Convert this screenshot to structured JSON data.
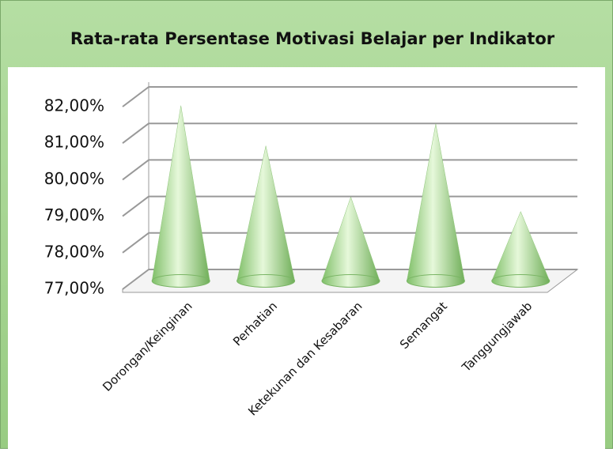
{
  "chart_data": {
    "type": "cone",
    "title": "Rata-rata Persentase Motivasi Belajar per Indikator",
    "categories": [
      "Dorongan/Keinginan",
      "Perhatian",
      "Ketekunan dan Kesabaran",
      "Semangat",
      "Tanggungjawab"
    ],
    "values": [
      81.8,
      80.7,
      79.3,
      81.3,
      78.9
    ],
    "color": "#9fd68a",
    "ylim": [
      77,
      82
    ],
    "yticks": [
      {
        "value": 77,
        "label": "77,00%"
      },
      {
        "value": 78,
        "label": "78,00%"
      },
      {
        "value": 79,
        "label": "79,00%"
      },
      {
        "value": 80,
        "label": "80,00%"
      },
      {
        "value": 81,
        "label": "81,00%"
      },
      {
        "value": 82,
        "label": "82,00%"
      }
    ],
    "grid": true
  }
}
